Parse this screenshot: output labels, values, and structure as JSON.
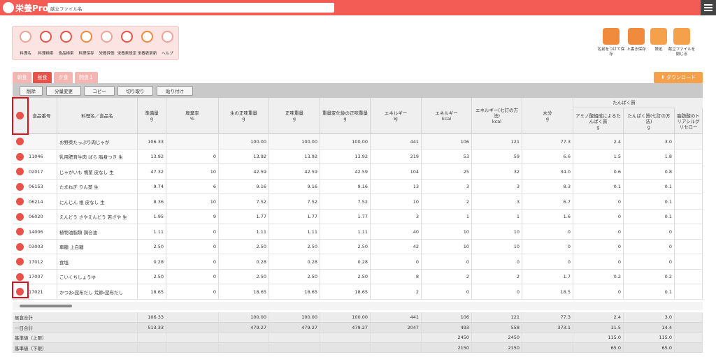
{
  "header": {
    "logo": "栄養Pro",
    "search": "献立ファイル名"
  },
  "tools": [
    "料理名",
    "料理検索",
    "食品検索",
    "料理保存",
    "栄養評価",
    "栄養素設定",
    "栄養表更新",
    "ヘルプ"
  ],
  "actions": [
    "名前をつけて保存",
    "上書き保存",
    "設定",
    "献立ファイルを閉じる"
  ],
  "tabs": [
    "朝食",
    "昼食",
    "夕食",
    "間食１"
  ],
  "download": "ダウンロード",
  "buttons": [
    "削除",
    "分量変更",
    "コピー",
    "切り取り",
    "貼り付け"
  ],
  "table": {
    "group": "たんぱく質",
    "columns": [
      {
        "label": "食品番号"
      },
      {
        "label": "料理名／食品名"
      },
      {
        "label": "準備量",
        "unit": "g"
      },
      {
        "label": "廃棄率",
        "unit": "%"
      },
      {
        "label": "生の正味重量",
        "unit": "g"
      },
      {
        "label": "正味重量",
        "unit": "g"
      },
      {
        "label": "重量変化後の正味重量",
        "unit": "g"
      },
      {
        "label": "エネルギー",
        "unit": "kJ"
      },
      {
        "label": "エネルギー",
        "unit": "kcal"
      },
      {
        "label": "エネルギー(七訂の方法)",
        "unit": "kcal"
      },
      {
        "label": "水分",
        "unit": "g"
      },
      {
        "label": "アミノ酸組成によるたんぱく質",
        "unit": "g"
      },
      {
        "label": "たんぱく質(七訂の方法)",
        "unit": "g"
      },
      {
        "label": "脂肪酸のトリアシルグリセロー"
      }
    ],
    "rows": [
      [
        null,
        "お野菜たっぷり肉じゃが",
        "106.33",
        null,
        "100.00",
        "100.00",
        "100.00",
        "441",
        "106",
        "121",
        "77.3",
        "2.4",
        "3.0"
      ],
      [
        "11046",
        "乳用肥育牛肉 ばら 脂身つき 生",
        "13.92",
        "0",
        "13.92",
        "13.92",
        "13.92",
        "219",
        "53",
        "59",
        "6.6",
        "1.5",
        "1.8"
      ],
      [
        "02017",
        "じゃがいも 塊茎 皮なし 生",
        "47.32",
        "10",
        "42.59",
        "42.59",
        "42.59",
        "104",
        "25",
        "32",
        "34.0",
        "0.6",
        "0.8"
      ],
      [
        "06153",
        "たまねぎ りん茎 生",
        "9.74",
        "6",
        "9.16",
        "9.16",
        "9.16",
        "13",
        "3",
        "3",
        "8.3",
        "0.1",
        "0.1"
      ],
      [
        "06214",
        "にんじん 根 皮なし 生",
        "8.36",
        "10",
        "7.52",
        "7.52",
        "7.52",
        "10",
        "2",
        "3",
        "6.7",
        "0",
        "0.1"
      ],
      [
        "06020",
        "えんどう さやえんどう 若ざや 生",
        "1.95",
        "9",
        "1.77",
        "1.77",
        "1.77",
        "3",
        "1",
        "1",
        "1.6",
        "0",
        "0.1"
      ],
      [
        "14006",
        "植物油脂類 調合油",
        "1.11",
        "0",
        "1.11",
        "1.11",
        "1.11",
        "40",
        "10",
        "10",
        "0",
        "0",
        "0"
      ],
      [
        "03003",
        "車糖 上白糖",
        "2.50",
        "0",
        "2.50",
        "2.50",
        "2.50",
        "42",
        "10",
        "10",
        "0",
        "0",
        "0"
      ],
      [
        "17012",
        "食塩",
        "0.28",
        "0",
        "0.28",
        "0.28",
        "0.28",
        "0",
        "0",
        "0",
        "0",
        "0",
        "0"
      ],
      [
        "17007",
        "こいくちしょうゆ",
        "2.50",
        "0",
        "2.50",
        "2.50",
        "2.50",
        "8",
        "2",
        "2",
        "1.7",
        "0.2",
        "0.2"
      ],
      [
        "17021",
        "かつお・昆布だし 荒節・昆布だし",
        "18.65",
        "0",
        "18.65",
        "18.65",
        "18.65",
        "2",
        "0",
        "0",
        "18.5",
        "0",
        "0.1"
      ]
    ],
    "totals": [
      {
        "label": "昼食合計",
        "cells": [
          "106.33",
          null,
          "100.00",
          "100.00",
          "100.00",
          "441",
          "106",
          "121",
          "77.3",
          "2.4",
          "3.0"
        ]
      },
      {
        "label": "一日合計",
        "cells": [
          "513.33",
          null,
          "479.27",
          "479.27",
          "479.27",
          "2047",
          "493",
          "558",
          "373.1",
          "11.5",
          "14.4"
        ]
      },
      {
        "label": "基準値（上限）",
        "cells": [
          null,
          null,
          null,
          null,
          null,
          null,
          "2450",
          "2450",
          null,
          "115.0",
          "115.0"
        ]
      },
      {
        "label": "基準値（下限）",
        "cells": [
          null,
          null,
          null,
          null,
          null,
          null,
          "2150",
          "2150",
          null,
          "65.0",
          "65.0"
        ]
      }
    ]
  }
}
